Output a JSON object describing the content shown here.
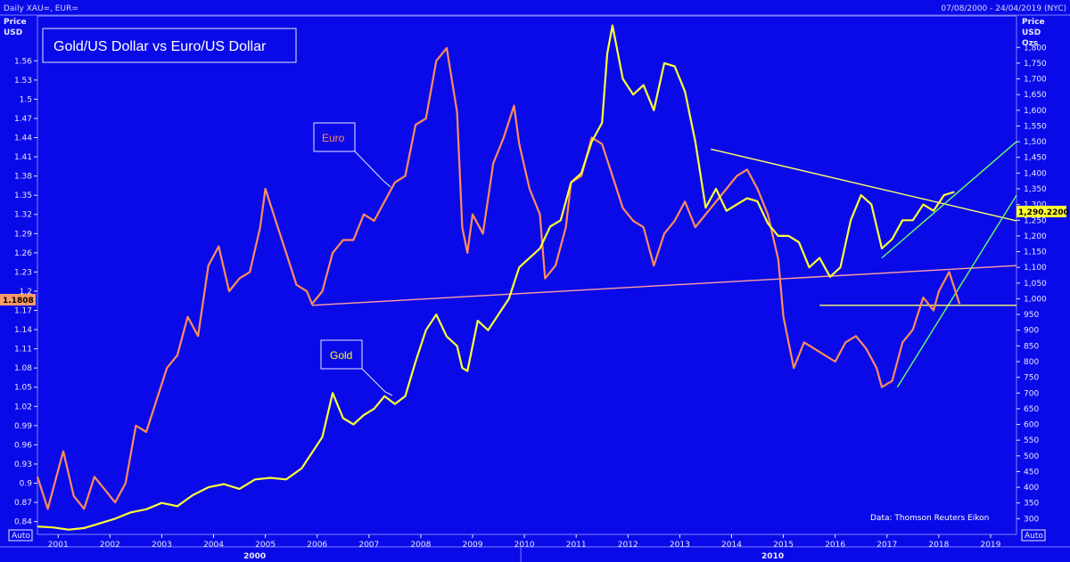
{
  "header": {
    "symbols": "Daily XAU=, EUR=",
    "date_range": "07/08/2000 - 24/04/2019 (NYC)"
  },
  "left_axis_title": [
    "Price",
    "USD"
  ],
  "right_axis_title": [
    "Price",
    "USD",
    "Ozs"
  ],
  "auto_label": "Auto",
  "last_values": {
    "euro": "1.1808",
    "gold": "1,290.2200"
  },
  "credit": "Data: Thomson Reuters Eikon",
  "colors": {
    "background": "#0a0ae8",
    "euro": "#ff8c5a",
    "gold": "#ffff33",
    "euro_trend": "#ff9f9f",
    "gold_trend": "#ffff66",
    "green_trend": "#66ff66"
  },
  "chart_data": {
    "type": "line",
    "title": "Gold/US Dollar vs Euro/US Dollar",
    "xlim": [
      2000.6,
      2019.5
    ],
    "x_ticks": [
      "2001",
      "2002",
      "2003",
      "2004",
      "2005",
      "2006",
      "2007",
      "2008",
      "2009",
      "2010",
      "2011",
      "2012",
      "2013",
      "2014",
      "2015",
      "2016",
      "2017",
      "2018",
      "2019"
    ],
    "x_decade_labels": [
      "2000",
      "2010"
    ],
    "left_axis": {
      "ylim": [
        0.82,
        1.63
      ],
      "ticks": [
        "0.84",
        "0.87",
        "0.9",
        "0.93",
        "0.96",
        "0.99",
        "1.02",
        "1.05",
        "1.08",
        "1.11",
        "1.14",
        "1.17",
        "1.2",
        "1.23",
        "1.26",
        "1.29",
        "1.32",
        "1.35",
        "1.38",
        "1.41",
        "1.44",
        "1.47",
        "1.5",
        "1.53",
        "1.56"
      ]
    },
    "right_axis": {
      "ylim": [
        250,
        1900
      ],
      "ticks": [
        "300",
        "350",
        "400",
        "450",
        "500",
        "550",
        "600",
        "650",
        "700",
        "750",
        "800",
        "850",
        "900",
        "950",
        "1,000",
        "1,050",
        "1,100",
        "1,150",
        "1,200",
        "1,250",
        "1,300",
        "1,350",
        "1,400",
        "1,450",
        "1,500",
        "1,550",
        "1,600",
        "1,650",
        "1,700",
        "1,750",
        "1,800"
      ]
    },
    "annotations": [
      "Euro",
      "Gold"
    ],
    "series": [
      {
        "name": "Euro",
        "axis": "left",
        "x": [
          2000.6,
          2000.8,
          2000.9,
          2001.1,
          2001.3,
          2001.5,
          2001.7,
          2001.9,
          2002.1,
          2002.3,
          2002.5,
          2002.7,
          2002.9,
          2003.1,
          2003.3,
          2003.5,
          2003.7,
          2003.9,
          2004.1,
          2004.3,
          2004.5,
          2004.7,
          2004.9,
          2005.0,
          2005.2,
          2005.4,
          2005.6,
          2005.8,
          2005.9,
          2006.1,
          2006.3,
          2006.5,
          2006.7,
          2006.9,
          2007.1,
          2007.3,
          2007.5,
          2007.7,
          2007.9,
          2008.1,
          2008.3,
          2008.5,
          2008.7,
          2008.8,
          2008.9,
          2009.0,
          2009.2,
          2009.4,
          2009.6,
          2009.8,
          2009.9,
          2010.1,
          2010.3,
          2010.4,
          2010.6,
          2010.8,
          2010.9,
          2011.1,
          2011.3,
          2011.5,
          2011.7,
          2011.9,
          2012.1,
          2012.3,
          2012.5,
          2012.7,
          2012.9,
          2013.1,
          2013.3,
          2013.5,
          2013.7,
          2013.9,
          2014.1,
          2014.3,
          2014.5,
          2014.7,
          2014.9,
          2015.0,
          2015.2,
          2015.4,
          2015.6,
          2015.8,
          2016.0,
          2016.2,
          2016.4,
          2016.6,
          2016.8,
          2016.9,
          2017.1,
          2017.3,
          2017.5,
          2017.7,
          2017.9,
          2018.0,
          2018.2,
          2018.4
        ],
        "values": [
          0.91,
          0.86,
          0.89,
          0.95,
          0.88,
          0.86,
          0.91,
          0.89,
          0.87,
          0.9,
          0.99,
          0.98,
          1.03,
          1.08,
          1.1,
          1.16,
          1.13,
          1.24,
          1.27,
          1.2,
          1.22,
          1.23,
          1.3,
          1.36,
          1.31,
          1.26,
          1.21,
          1.2,
          1.18,
          1.2,
          1.26,
          1.28,
          1.28,
          1.32,
          1.31,
          1.34,
          1.37,
          1.38,
          1.46,
          1.47,
          1.56,
          1.58,
          1.48,
          1.3,
          1.26,
          1.32,
          1.29,
          1.4,
          1.44,
          1.49,
          1.43,
          1.36,
          1.32,
          1.22,
          1.24,
          1.3,
          1.37,
          1.38,
          1.44,
          1.43,
          1.38,
          1.33,
          1.31,
          1.3,
          1.24,
          1.29,
          1.31,
          1.34,
          1.3,
          1.32,
          1.34,
          1.36,
          1.38,
          1.39,
          1.36,
          1.32,
          1.25,
          1.16,
          1.08,
          1.12,
          1.11,
          1.1,
          1.09,
          1.12,
          1.13,
          1.11,
          1.08,
          1.05,
          1.06,
          1.12,
          1.14,
          1.19,
          1.17,
          1.2,
          1.23,
          1.18
        ]
      },
      {
        "name": "Gold",
        "axis": "right",
        "x": [
          2000.6,
          2000.9,
          2001.2,
          2001.5,
          2001.8,
          2002.1,
          2002.4,
          2002.7,
          2003.0,
          2003.3,
          2003.6,
          2003.9,
          2004.2,
          2004.5,
          2004.8,
          2005.1,
          2005.4,
          2005.7,
          2005.9,
          2006.1,
          2006.3,
          2006.5,
          2006.7,
          2006.9,
          2007.1,
          2007.3,
          2007.5,
          2007.7,
          2007.9,
          2008.1,
          2008.3,
          2008.5,
          2008.7,
          2008.8,
          2008.9,
          2009.1,
          2009.3,
          2009.5,
          2009.7,
          2009.9,
          2010.1,
          2010.3,
          2010.5,
          2010.7,
          2010.9,
          2011.1,
          2011.3,
          2011.5,
          2011.6,
          2011.7,
          2011.9,
          2012.1,
          2012.3,
          2012.5,
          2012.7,
          2012.9,
          2013.1,
          2013.3,
          2013.5,
          2013.7,
          2013.9,
          2014.1,
          2014.3,
          2014.5,
          2014.7,
          2014.9,
          2015.1,
          2015.3,
          2015.5,
          2015.7,
          2015.9,
          2016.1,
          2016.3,
          2016.5,
          2016.7,
          2016.9,
          2017.1,
          2017.3,
          2017.5,
          2017.7,
          2017.9,
          2018.1,
          2018.3
        ],
        "values": [
          275,
          272,
          265,
          270,
          285,
          300,
          320,
          330,
          350,
          340,
          375,
          400,
          410,
          395,
          425,
          430,
          425,
          460,
          510,
          560,
          700,
          620,
          600,
          630,
          650,
          690,
          665,
          690,
          800,
          900,
          950,
          880,
          850,
          780,
          770,
          930,
          900,
          950,
          1000,
          1100,
          1130,
          1160,
          1230,
          1250,
          1370,
          1400,
          1500,
          1560,
          1780,
          1870,
          1700,
          1650,
          1680,
          1600,
          1750,
          1740,
          1660,
          1500,
          1290,
          1350,
          1280,
          1300,
          1320,
          1310,
          1240,
          1200,
          1200,
          1180,
          1100,
          1130,
          1070,
          1100,
          1250,
          1330,
          1300,
          1160,
          1190,
          1250,
          1250,
          1300,
          1280,
          1330,
          1340
        ]
      }
    ],
    "trendlines": [
      {
        "name": "Euro trend",
        "axis": "left",
        "x": [
          2005.9,
          2019.5
        ],
        "values": [
          1.178,
          1.24
        ]
      },
      {
        "name": "Gold trend",
        "axis": "right",
        "x": [
          2013.6,
          2019.5
        ],
        "values": [
          1.422,
          1.31
        ],
        "values_axis": "left"
      },
      {
        "name": "Gold uptrend",
        "axis": "right",
        "x": [
          2016.9,
          2019.5
        ],
        "values": [
          1130,
          1500
        ]
      },
      {
        "name": "Euro uptrend",
        "axis": "left",
        "x": [
          2017.2,
          2019.5
        ],
        "values": [
          1.05,
          1.35
        ]
      },
      {
        "name": "Euro support",
        "axis": "left",
        "x": [
          2015.7,
          2019.5
        ],
        "values": [
          1.178,
          1.178
        ]
      }
    ]
  }
}
